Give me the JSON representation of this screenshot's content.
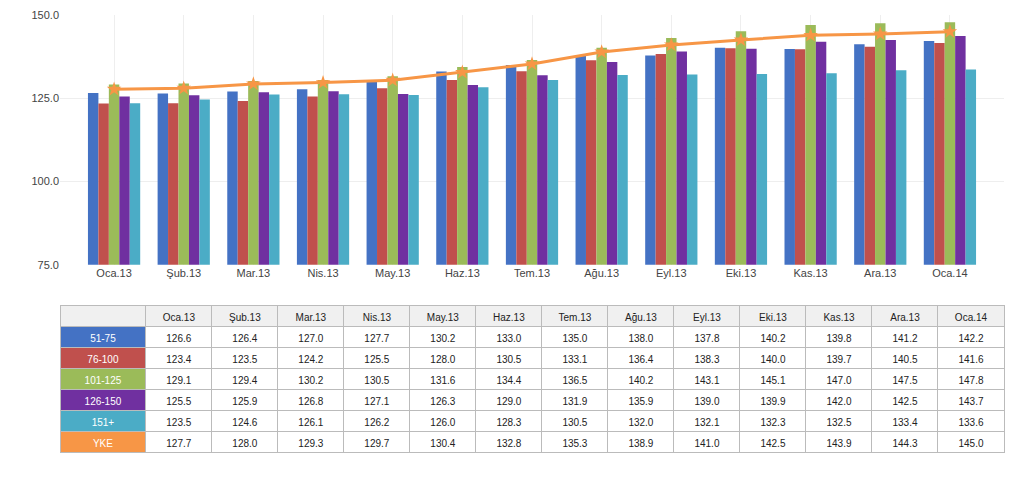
{
  "chart_data": {
    "type": "bar",
    "categories": [
      "Oca.13",
      "Şub.13",
      "Mar.13",
      "Nis.13",
      "May.13",
      "Haz.13",
      "Tem.13",
      "Ağu.13",
      "Eyl.13",
      "Eki.13",
      "Kas.13",
      "Ara.13",
      "Oca.14"
    ],
    "series": [
      {
        "name": "51-75",
        "type": "bar",
        "color": "#4472C4",
        "values": [
          126.6,
          126.4,
          127.0,
          127.7,
          130.2,
          133.0,
          135.0,
          138.0,
          137.8,
          140.2,
          139.8,
          141.2,
          142.2
        ],
        "value_labels": [
          "126.6",
          "126.4",
          "127.0",
          "127.7",
          "130.2",
          "133.0",
          "135.0",
          "138.0",
          "137.8",
          "140.2",
          "139.8",
          "141.2",
          "142.2"
        ]
      },
      {
        "name": "76-100",
        "type": "bar",
        "color": "#C0504D",
        "values": [
          123.4,
          123.5,
          124.2,
          125.5,
          128.0,
          130.5,
          133.1,
          136.4,
          138.3,
          140.0,
          139.7,
          140.5,
          141.6
        ],
        "value_labels": [
          "123.4",
          "123.5",
          "124.2",
          "125.5",
          "128.0",
          "130.5",
          "133.1",
          "136.4",
          "138.3",
          "140.0",
          "139.7",
          "140.5",
          "141.6"
        ]
      },
      {
        "name": "101-125",
        "type": "bar",
        "color": "#9BBB59",
        "values": [
          129.1,
          129.4,
          130.2,
          130.5,
          131.6,
          134.4,
          136.5,
          140.2,
          143.1,
          145.1,
          147.0,
          147.5,
          147.8
        ],
        "value_labels": [
          "129.1",
          "129.4",
          "130.2",
          "130.5",
          "131.6",
          "134.4",
          "136.5",
          "140.2",
          "143.1",
          "145.1",
          "147.0",
          "147.5",
          "147.8"
        ]
      },
      {
        "name": "126-150",
        "type": "bar",
        "color": "#7030A0",
        "values": [
          125.5,
          125.9,
          126.8,
          127.1,
          126.3,
          129.0,
          131.9,
          135.9,
          139.0,
          139.9,
          142.0,
          142.5,
          143.7
        ],
        "value_labels": [
          "125.5",
          "125.9",
          "126.8",
          "127.1",
          "126.3",
          "129.0",
          "131.9",
          "135.9",
          "139.0",
          "139.9",
          "142.0",
          "142.5",
          "143.7"
        ]
      },
      {
        "name": "151+",
        "type": "bar",
        "color": "#4BACC6",
        "values": [
          123.5,
          124.6,
          126.1,
          126.2,
          126.0,
          128.3,
          130.5,
          132.0,
          132.1,
          132.3,
          132.5,
          133.4,
          133.6
        ],
        "value_labels": [
          "123.5",
          "124.6",
          "126.1",
          "126.2",
          "126.0",
          "128.3",
          "130.5",
          "132.0",
          "132.1",
          "132.3",
          "132.5",
          "133.4",
          "133.6"
        ]
      },
      {
        "name": "YKE",
        "type": "line",
        "marker": "star",
        "color": "#F79646",
        "values": [
          127.7,
          128.0,
          129.3,
          129.7,
          130.4,
          132.8,
          135.3,
          138.9,
          141.0,
          142.5,
          143.9,
          144.3,
          145.0
        ],
        "value_labels": [
          "127.7",
          "128.0",
          "129.3",
          "129.7",
          "130.4",
          "132.8",
          "135.3",
          "138.9",
          "141.0",
          "142.5",
          "143.9",
          "144.3",
          "145.0"
        ]
      }
    ],
    "ylim": [
      75.0,
      150.0
    ],
    "yticks": [
      {
        "value": 75,
        "label": "75.0"
      },
      {
        "value": 100,
        "label": "100.0"
      },
      {
        "value": 125,
        "label": "125.0"
      },
      {
        "value": 150,
        "label": "150.0"
      }
    ],
    "grid": true
  }
}
